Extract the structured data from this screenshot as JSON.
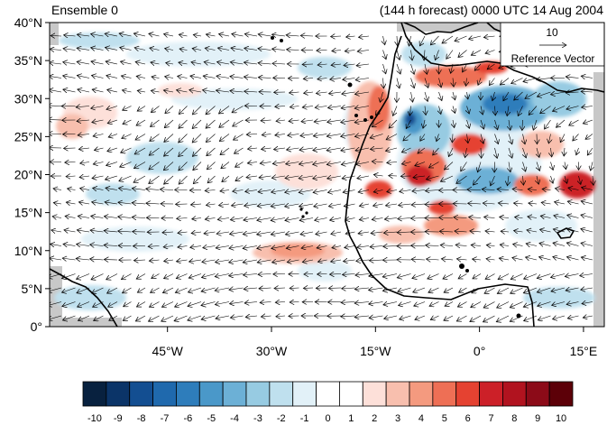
{
  "header": {
    "left_title": "Ensemble 0",
    "right_title": "(144 h forecast) 0000 UTC 14 Aug 2004"
  },
  "map": {
    "lon_range": [
      -62,
      18
    ],
    "lat_range": [
      0,
      40
    ],
    "lat_tick_labels": [
      "0°",
      "5°N",
      "10°N",
      "15°N",
      "20°N",
      "25°N",
      "30°N",
      "35°N",
      "40°N"
    ],
    "lat_tick_values": [
      0,
      5,
      10,
      15,
      20,
      25,
      30,
      35,
      40
    ],
    "lon_tick_labels": [
      "45°W",
      "30°W",
      "15°W",
      "0°",
      "15°E"
    ],
    "lon_tick_values": [
      -45,
      -30,
      -15,
      0,
      15
    ],
    "reference_vector": {
      "value": "10",
      "label": "Reference Vector"
    },
    "colors": {
      "land_outline": "#000000",
      "background": "#ffffff",
      "missing": "#c8c8c8"
    }
  },
  "colorbar": {
    "labels": [
      "-10",
      "-9",
      "-8",
      "-7",
      "-6",
      "-5",
      "-4",
      "-3",
      "-2",
      "-1",
      "0",
      "1",
      "2",
      "3",
      "4",
      "5",
      "6",
      "7",
      "8",
      "9",
      "10"
    ],
    "colors": [
      "#08213f",
      "#0b3468",
      "#134e91",
      "#1f69ad",
      "#2e7dbb",
      "#4a98c9",
      "#6cb0d6",
      "#97cbe2",
      "#bfe0ee",
      "#e2f1f8",
      "#ffffff",
      "#ffffff",
      "#fde0d9",
      "#f8bfae",
      "#f49a7f",
      "#ee6f55",
      "#e54231",
      "#cc2028",
      "#b1131f",
      "#8c0b18",
      "#5c0008"
    ]
  }
}
